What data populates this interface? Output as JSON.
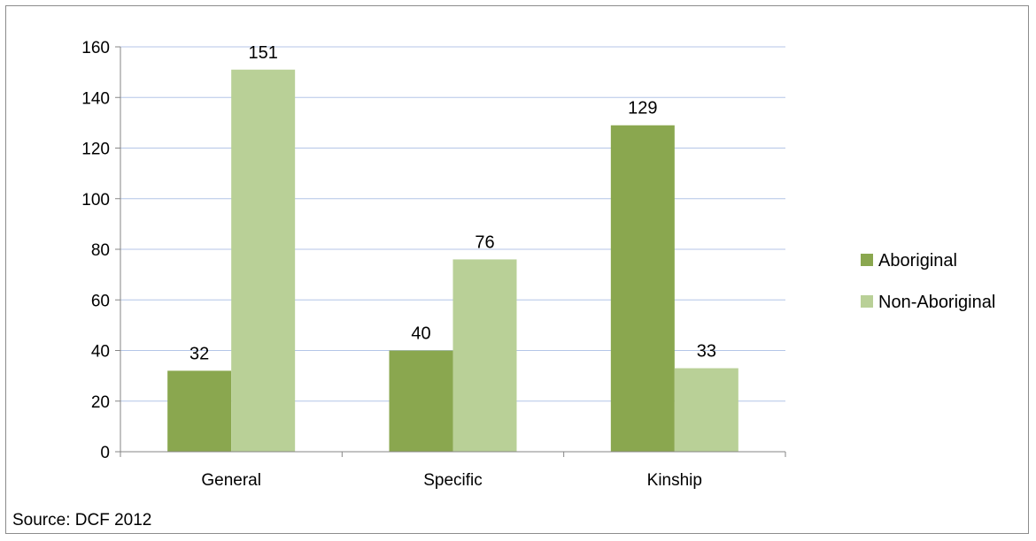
{
  "chart_data": {
    "type": "bar",
    "categories": [
      "General",
      "Specific",
      "Kinship"
    ],
    "series": [
      {
        "name": "Aboriginal",
        "values": [
          32,
          40,
          129
        ],
        "color": "#8aa74f"
      },
      {
        "name": "Non-Aboriginal",
        "values": [
          151,
          76,
          33
        ],
        "color": "#b9d097"
      }
    ],
    "ylim": [
      0,
      160
    ],
    "yticks": [
      0,
      20,
      40,
      60,
      80,
      100,
      120,
      140,
      160
    ],
    "grid": true,
    "gridline_color": "#b4c6e7",
    "legend_position": "right",
    "data_labels": true
  },
  "source_note": "Source: DCF 2012"
}
